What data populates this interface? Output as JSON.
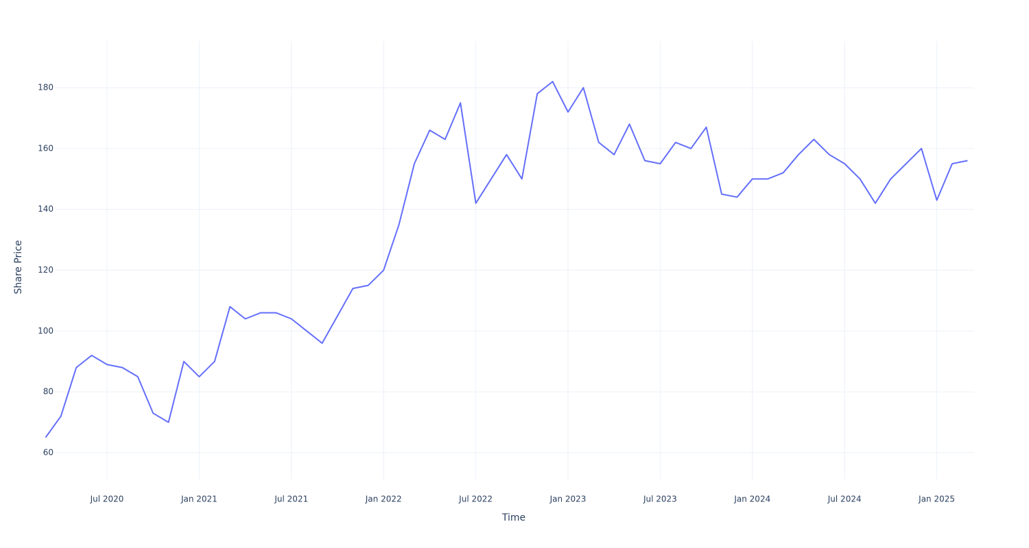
{
  "chart_data": {
    "type": "line",
    "x_label": "Time",
    "y_label": "Share Price",
    "x": [
      "2020-03",
      "2020-04",
      "2020-05",
      "2020-06",
      "2020-07",
      "2020-08",
      "2020-09",
      "2020-10",
      "2020-11",
      "2020-12",
      "2021-01",
      "2021-02",
      "2021-03",
      "2021-04",
      "2021-05",
      "2021-06",
      "2021-07",
      "2021-08",
      "2021-09",
      "2021-10",
      "2021-11",
      "2021-12",
      "2022-01",
      "2022-02",
      "2022-03",
      "2022-04",
      "2022-05",
      "2022-06",
      "2022-07",
      "2022-08",
      "2022-09",
      "2022-10",
      "2022-11",
      "2022-12",
      "2023-01",
      "2023-02",
      "2023-03",
      "2023-04",
      "2023-05",
      "2023-06",
      "2023-07",
      "2023-08",
      "2023-09",
      "2023-10",
      "2023-11",
      "2023-12",
      "2024-01",
      "2024-02",
      "2024-03",
      "2024-04",
      "2024-05",
      "2024-06",
      "2024-07",
      "2024-08",
      "2024-09",
      "2024-10",
      "2024-11",
      "2024-12",
      "2025-01",
      "2025-02",
      "2025-03"
    ],
    "values": [
      65,
      72,
      88,
      92,
      89,
      88,
      85,
      73,
      70,
      90,
      85,
      90,
      108,
      104,
      106,
      106,
      104,
      100,
      96,
      105,
      114,
      115,
      120,
      135,
      155,
      166,
      163,
      175,
      142,
      150,
      158,
      150,
      178,
      182,
      172,
      180,
      162,
      158,
      168,
      156,
      155,
      162,
      160,
      167,
      145,
      144,
      150,
      150,
      152,
      158,
      163,
      158,
      155,
      150,
      142,
      150,
      155,
      160,
      143,
      155,
      156
    ],
    "color": "#636efa",
    "xlim": [
      "2020-03",
      "2025-04"
    ],
    "xticks": [
      {
        "value": "2020-07",
        "label": "Jul 2020"
      },
      {
        "value": "2021-01",
        "label": "Jan 2021"
      },
      {
        "value": "2021-07",
        "label": "Jul 2021"
      },
      {
        "value": "2022-01",
        "label": "Jan 2022"
      },
      {
        "value": "2022-07",
        "label": "Jul 2022"
      },
      {
        "value": "2023-01",
        "label": "Jan 2023"
      },
      {
        "value": "2023-07",
        "label": "Jul 2023"
      },
      {
        "value": "2024-01",
        "label": "Jan 2024"
      },
      {
        "value": "2024-07",
        "label": "Jul 2024"
      },
      {
        "value": "2025-01",
        "label": "Jan 2025"
      }
    ],
    "ylim": [
      51.2,
      195.3
    ],
    "yticks": [
      60,
      80,
      100,
      120,
      140,
      160,
      180
    ],
    "grid": true
  }
}
